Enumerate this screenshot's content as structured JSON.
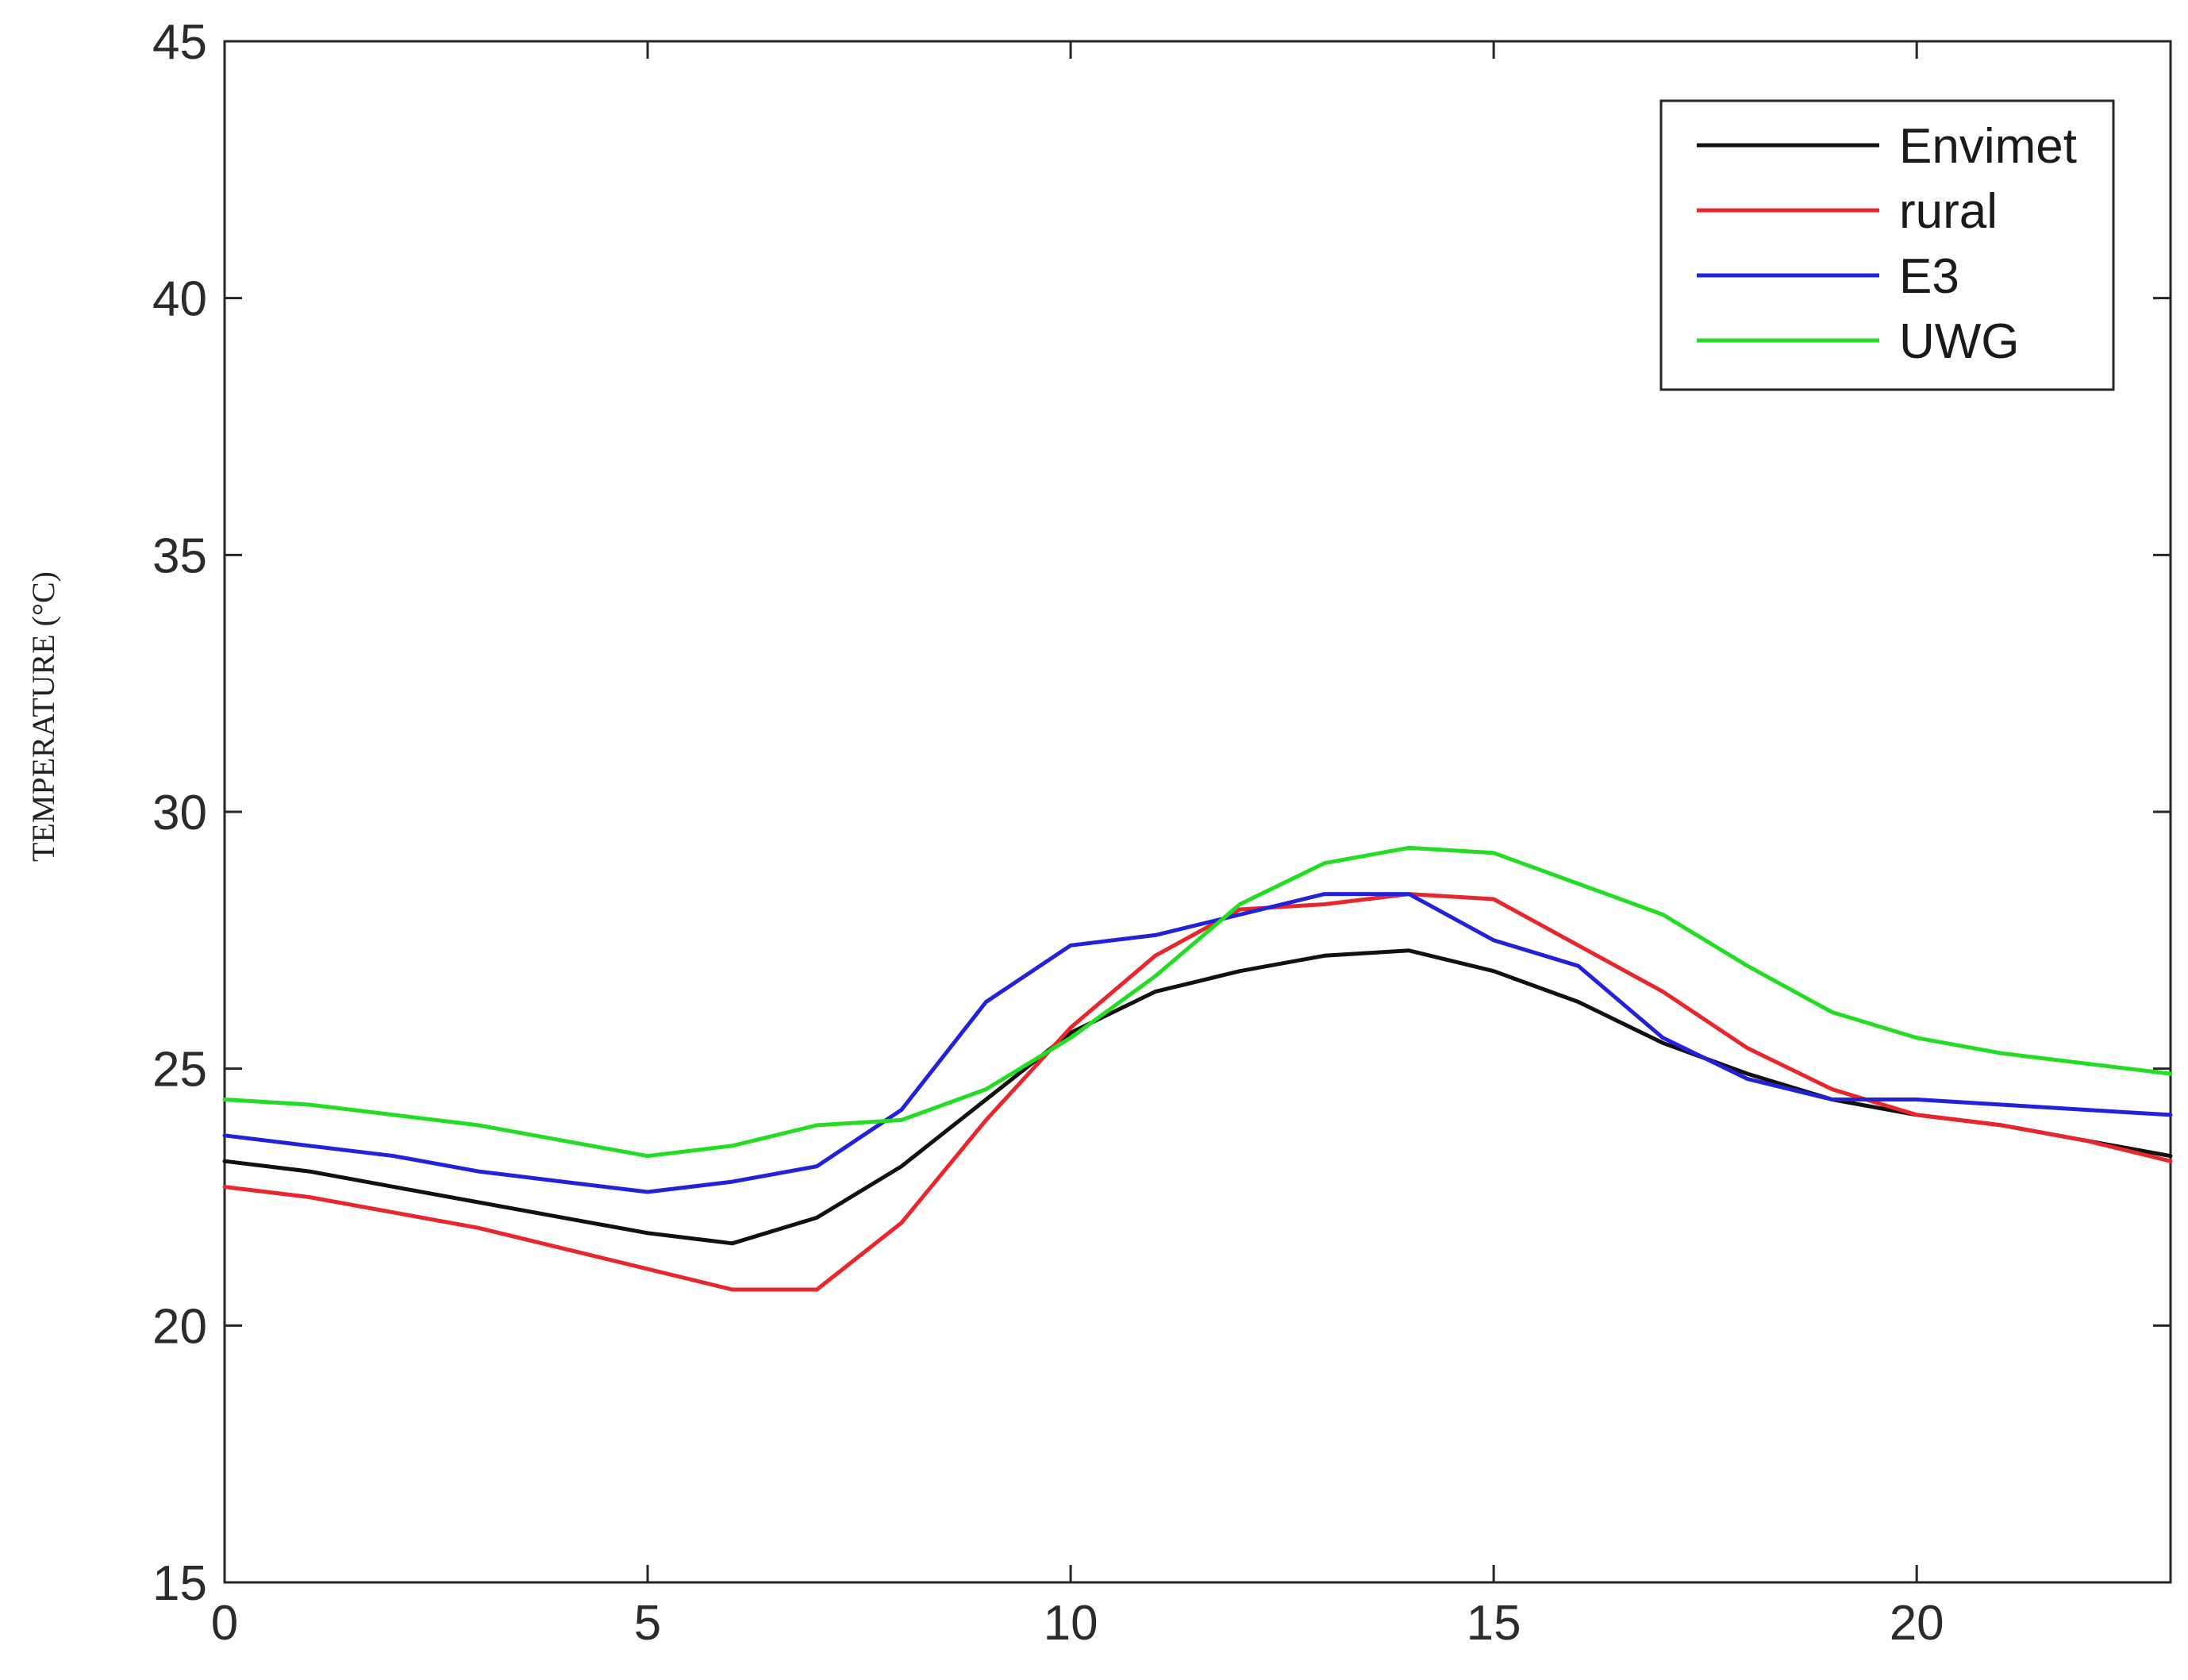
{
  "chart_data": {
    "type": "line",
    "title": "",
    "xlabel": "",
    "ylabel": "TEMPERATURE (°C)",
    "xlim": [
      0,
      23
    ],
    "ylim": [
      15,
      45
    ],
    "xticks": [
      0,
      5,
      10,
      15,
      20
    ],
    "yticks": [
      15,
      20,
      25,
      30,
      35,
      40,
      45
    ],
    "grid": false,
    "legend_position": "top-right",
    "x": [
      0,
      1,
      2,
      3,
      4,
      5,
      6,
      7,
      8,
      9,
      10,
      11,
      12,
      13,
      14,
      15,
      16,
      17,
      18,
      19,
      20,
      21,
      22,
      23
    ],
    "series": [
      {
        "name": "Envimet",
        "color": "#111111",
        "values": [
          23.2,
          23.0,
          22.7,
          22.4,
          22.1,
          21.8,
          21.6,
          22.1,
          23.1,
          24.4,
          25.7,
          26.5,
          26.9,
          27.2,
          27.3,
          26.9,
          26.3,
          25.5,
          24.9,
          24.4,
          24.1,
          23.9,
          23.6,
          23.3
        ]
      },
      {
        "name": "rural",
        "color": "#e8262b",
        "values": [
          22.7,
          22.5,
          22.2,
          21.9,
          21.5,
          21.1,
          20.7,
          20.7,
          22.0,
          24.0,
          25.8,
          27.2,
          28.1,
          28.2,
          28.4,
          28.3,
          27.4,
          26.5,
          25.4,
          24.6,
          24.1,
          23.9,
          23.6,
          23.2
        ]
      },
      {
        "name": "E3",
        "color": "#2222dd",
        "values": [
          23.7,
          23.5,
          23.3,
          23.0,
          22.8,
          22.6,
          22.8,
          23.1,
          24.2,
          26.3,
          27.4,
          27.6,
          28.0,
          28.4,
          28.4,
          27.5,
          27.0,
          25.6,
          24.8,
          24.4,
          24.4,
          24.3,
          24.2,
          24.1
        ]
      },
      {
        "name": "UWG",
        "color": "#22dd22",
        "values": [
          24.4,
          24.3,
          24.1,
          23.9,
          23.6,
          23.3,
          23.5,
          23.9,
          24.0,
          24.6,
          25.6,
          26.8,
          28.2,
          29.0,
          29.3,
          29.2,
          28.6,
          28.0,
          27.0,
          26.1,
          25.6,
          25.3,
          25.1,
          24.9
        ]
      }
    ]
  }
}
